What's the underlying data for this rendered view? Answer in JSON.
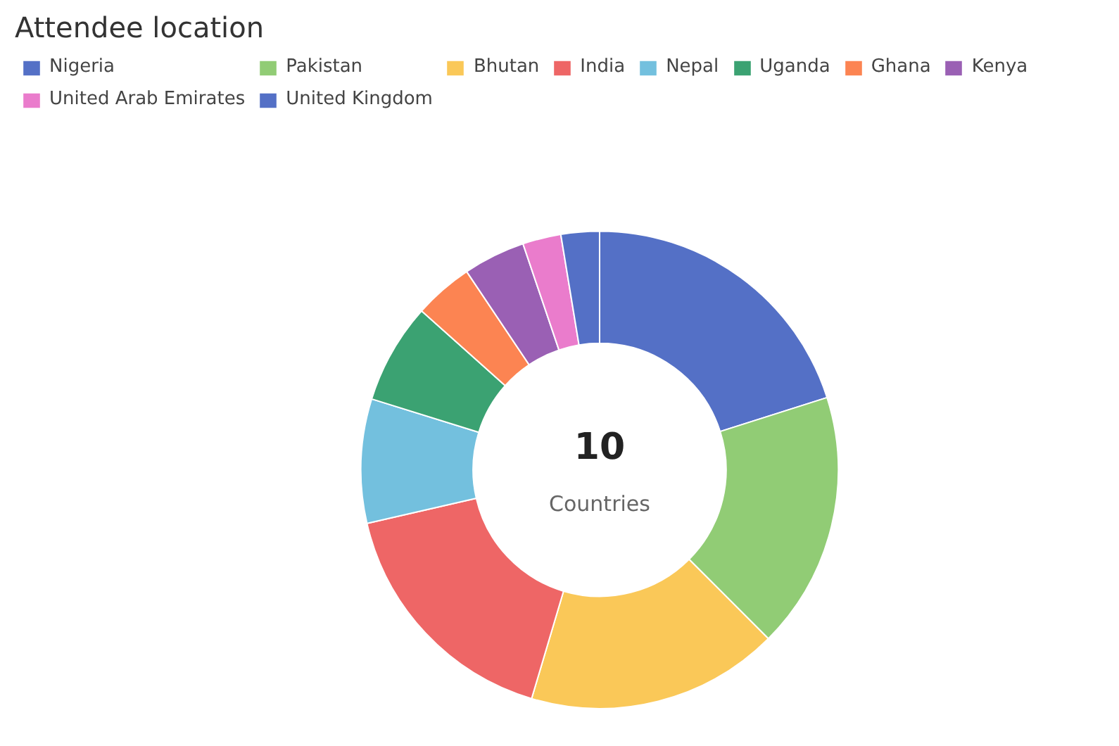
{
  "chart_data": {
    "type": "donut",
    "title": "Attendee location",
    "categories": [
      "Nigeria",
      "Pakistan",
      "Bhutan",
      "India",
      "Nepal",
      "Uganda",
      "Ghana",
      "Kenya",
      "United Arab Emirates",
      "United Kingdom"
    ],
    "values": [
      20.1,
      17.4,
      17.1,
      16.8,
      8.4,
      6.8,
      4,
      4.2,
      2.6,
      2.6
    ],
    "colors": [
      "#5470c6",
      "#91cc75",
      "#fac858",
      "#ee6666",
      "#73c0de",
      "#3ba272",
      "#fc8452",
      "#9a60b4",
      "#ea7ccc",
      "#5470c6"
    ],
    "annotations": [
      "10",
      "Countries"
    ],
    "legend": "top"
  }
}
